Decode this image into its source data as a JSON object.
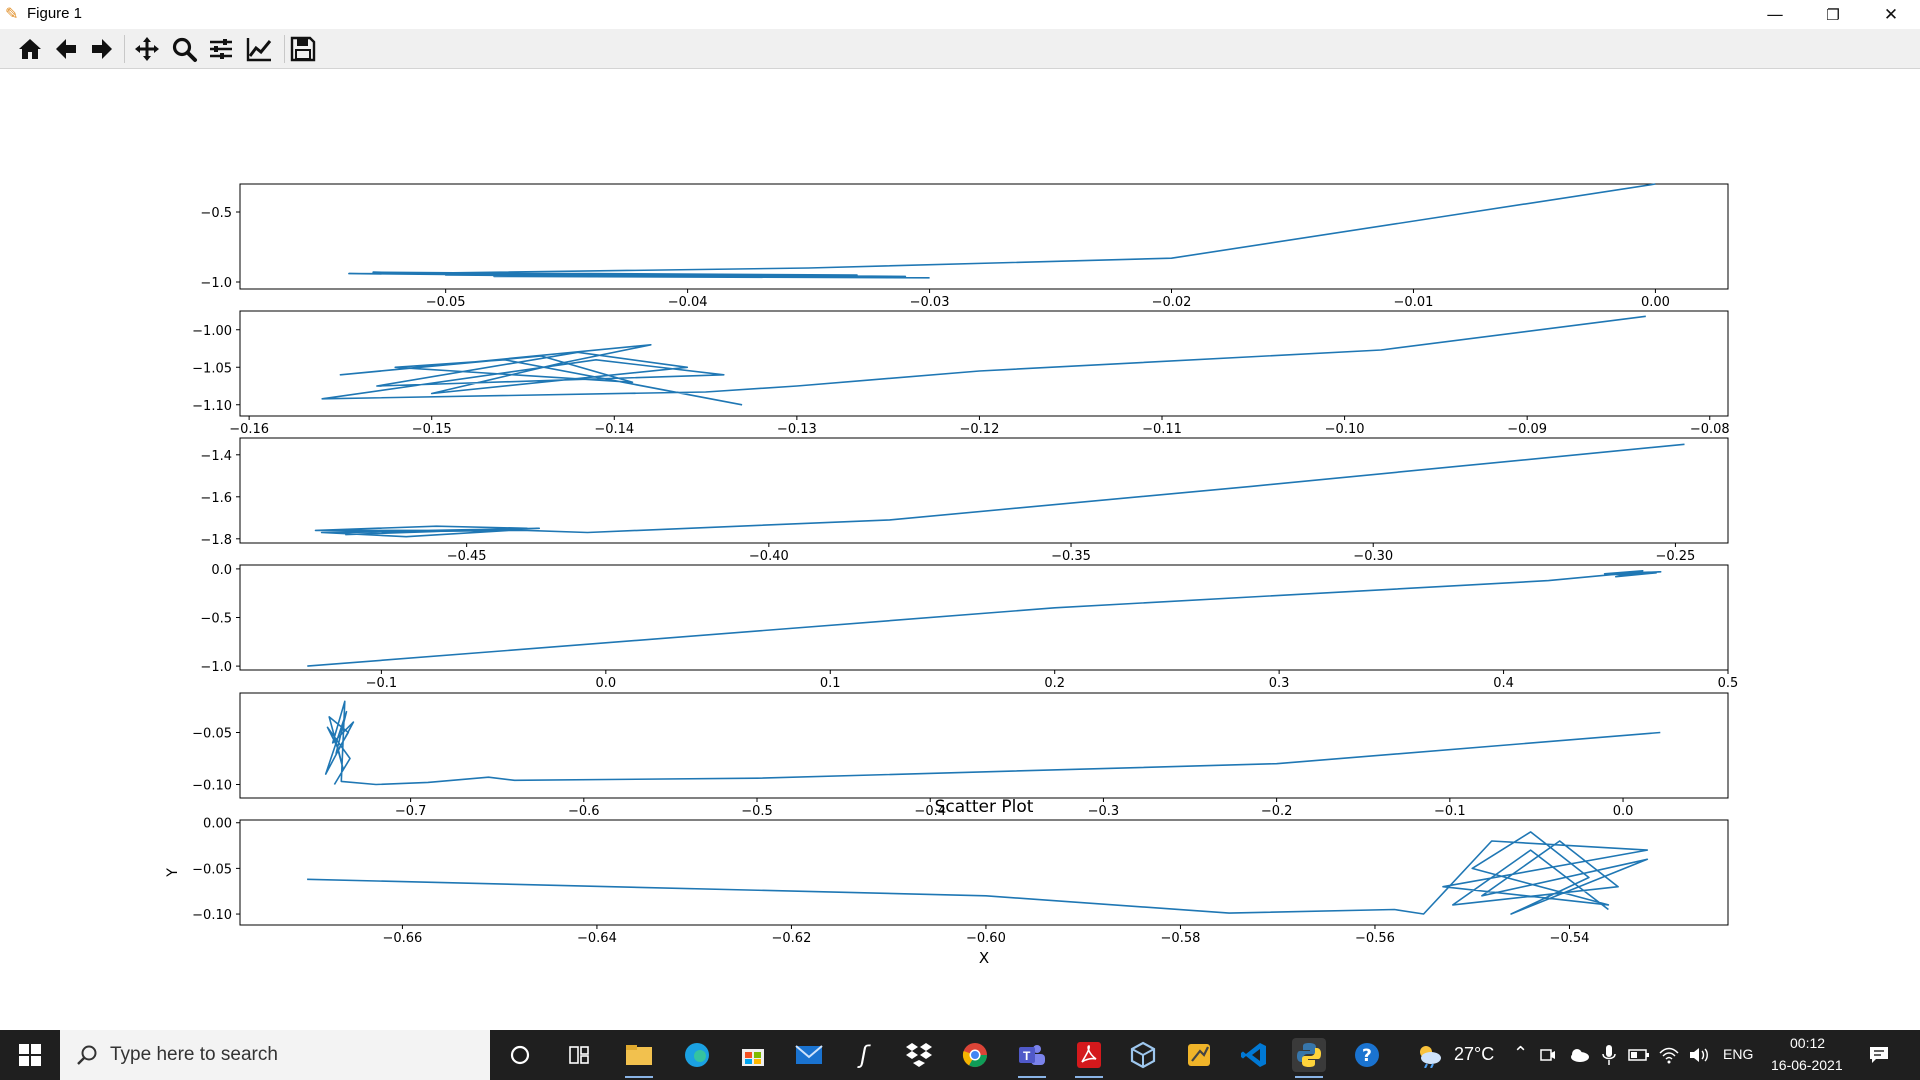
{
  "window": {
    "title": "Figure 1",
    "minimize_glyph": "—",
    "restore_glyph": "❐",
    "close_glyph": "✕"
  },
  "toolbar": {
    "buttons": [
      "home-icon",
      "back-arrow-icon",
      "forward-arrow-icon",
      "pan-icon",
      "zoom-icon",
      "subplots-icon",
      "edit-axes-icon",
      "save-icon"
    ]
  },
  "chart_data": [
    {
      "type": "line",
      "xlim": [
        -0.0585,
        0.003
      ],
      "ylim": [
        -1.05,
        -0.3
      ],
      "xticks": [
        -0.05,
        -0.04,
        -0.03,
        -0.02,
        -0.01,
        0.0
      ],
      "yticks": [
        -0.5,
        -1.0
      ],
      "x": [
        0.0,
        -0.02,
        -0.035,
        -0.052,
        -0.044,
        -0.033,
        -0.05,
        -0.041,
        -0.054,
        -0.036,
        -0.049,
        -0.031,
        -0.045,
        -0.053,
        -0.037,
        -0.048,
        -0.03
      ],
      "y": [
        -0.3,
        -0.83,
        -0.9,
        -0.94,
        -0.94,
        -0.95,
        -0.95,
        -0.96,
        -0.94,
        -0.95,
        -0.94,
        -0.96,
        -0.95,
        -0.93,
        -0.95,
        -0.96,
        -0.97
      ],
      "series_color": "#1f77b4"
    },
    {
      "type": "line",
      "xlim": [
        -0.1605,
        -0.079
      ],
      "ylim": [
        -1.115,
        -0.975
      ],
      "xticks": [
        -0.16,
        -0.15,
        -0.14,
        -0.13,
        -0.12,
        -0.11,
        -0.1,
        -0.09,
        -0.08
      ],
      "yticks": [
        -1.0,
        -1.05,
        -1.1
      ],
      "x": [
        -0.0835,
        -0.098,
        -0.12,
        -0.13,
        -0.135,
        -0.156,
        -0.141,
        -0.134,
        -0.153,
        -0.142,
        -0.136,
        -0.15,
        -0.143,
        -0.138,
        -0.155,
        -0.144,
        -0.139,
        -0.152,
        -0.146,
        -0.133
      ],
      "y": [
        -0.982,
        -1.027,
        -1.055,
        -1.075,
        -1.083,
        -1.092,
        -1.04,
        -1.06,
        -1.075,
        -1.03,
        -1.05,
        -1.085,
        -1.045,
        -1.02,
        -1.06,
        -1.035,
        -1.07,
        -1.05,
        -1.04,
        -1.1
      ],
      "series_color": "#1f77b4"
    },
    {
      "type": "line",
      "xlim": [
        -0.4875,
        -0.2413
      ],
      "ylim": [
        -1.82,
        -1.32
      ],
      "xticks": [
        -0.45,
        -0.4,
        -0.35,
        -0.3,
        -0.25
      ],
      "yticks": [
        -1.4,
        -1.6,
        -1.8
      ],
      "x": [
        -0.2485,
        -0.32,
        -0.38,
        -0.43,
        -0.44,
        -0.475,
        -0.455,
        -0.44,
        -0.47,
        -0.45,
        -0.438,
        -0.474,
        -0.46,
        -0.443,
        -0.472
      ],
      "y": [
        -1.35,
        -1.55,
        -1.71,
        -1.77,
        -1.76,
        -1.76,
        -1.74,
        -1.75,
        -1.78,
        -1.76,
        -1.75,
        -1.77,
        -1.79,
        -1.76,
        -1.77
      ],
      "series_color": "#1f77b4"
    },
    {
      "type": "line",
      "xlim": [
        -0.163,
        0.5
      ],
      "ylim": [
        -1.04,
        0.04
      ],
      "xticks": [
        -0.1,
        0.0,
        0.1,
        0.2,
        0.3,
        0.4,
        0.5
      ],
      "yticks": [
        0.0,
        -0.5,
        -1.0
      ],
      "x": [
        -0.133,
        0.2,
        0.42,
        0.448,
        0.47,
        0.445,
        0.462,
        0.45,
        0.468,
        0.447
      ],
      "y": [
        -1.0,
        -0.4,
        -0.12,
        -0.06,
        -0.03,
        -0.05,
        -0.02,
        -0.08,
        -0.04,
        -0.06
      ],
      "series_color": "#1f77b4"
    },
    {
      "type": "line",
      "xlim": [
        -0.7985,
        0.0606
      ],
      "ylim": [
        -0.113,
        -0.012
      ],
      "xticks": [
        -0.7,
        -0.6,
        -0.5,
        -0.4,
        -0.3,
        -0.2,
        -0.1,
        0.0
      ],
      "yticks": [
        -0.05,
        -0.1
      ],
      "x": [
        0.0215,
        -0.2,
        -0.5,
        -0.64,
        -0.655,
        -0.69,
        -0.72,
        -0.74,
        -0.738,
        -0.745,
        -0.733,
        -0.749,
        -0.737,
        -0.743,
        -0.736,
        -0.747,
        -0.739,
        -0.742,
        -0.748,
        -0.735,
        -0.744
      ],
      "y": [
        -0.05,
        -0.08,
        -0.094,
        -0.096,
        -0.093,
        -0.098,
        -0.1,
        -0.097,
        -0.02,
        -0.06,
        -0.04,
        -0.09,
        -0.03,
        -0.07,
        -0.05,
        -0.035,
        -0.085,
        -0.065,
        -0.045,
        -0.075,
        -0.1
      ],
      "series_color": "#1f77b4"
    },
    {
      "type": "line",
      "title": "Scatter Plot",
      "xlabel": "X",
      "ylabel": "Y",
      "xlim": [
        -0.6767,
        -0.5237
      ],
      "ylim": [
        -0.112,
        0.003
      ],
      "xticks": [
        -0.66,
        -0.64,
        -0.62,
        -0.6,
        -0.58,
        -0.56,
        -0.54
      ],
      "yticks": [
        0.0,
        -0.05,
        -0.1
      ],
      "x": [
        -0.6698,
        -0.6,
        -0.575,
        -0.558,
        -0.555,
        -0.548,
        -0.532,
        -0.553,
        -0.536,
        -0.55,
        -0.544,
        -0.538,
        -0.546,
        -0.532,
        -0.549,
        -0.541,
        -0.535,
        -0.552,
        -0.544,
        -0.536
      ],
      "y": [
        -0.062,
        -0.08,
        -0.099,
        -0.095,
        -0.1,
        -0.02,
        -0.03,
        -0.07,
        -0.09,
        -0.05,
        -0.01,
        -0.06,
        -0.1,
        -0.04,
        -0.08,
        -0.02,
        -0.07,
        -0.09,
        -0.03,
        -0.095
      ],
      "series_color": "#1f77b4"
    }
  ],
  "taskbar": {
    "search_placeholder": "Type here to search",
    "weather_temp": "27°C",
    "language": "ENG",
    "time": "00:12",
    "date": "16-06-2021",
    "apps": [
      "cortana-icon",
      "task-view-icon",
      "file-explorer-icon",
      "edge-icon",
      "store-icon",
      "mail-icon",
      "app-s-icon",
      "dropbox-icon",
      "chrome-icon",
      "teams-icon",
      "acrobat-icon",
      "virtualbox-icon",
      "app-tools-icon",
      "vscode-icon",
      "python-icon",
      "help-icon"
    ]
  }
}
